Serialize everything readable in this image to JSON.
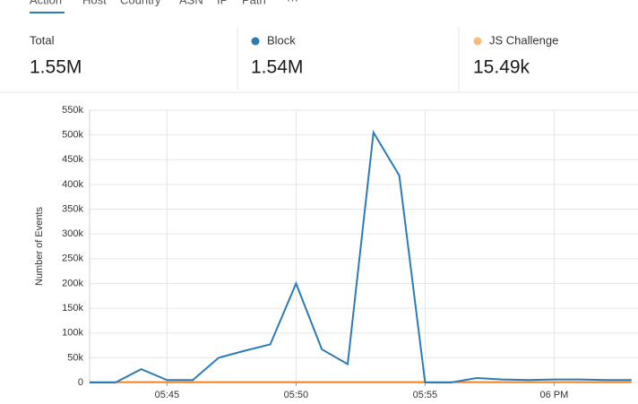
{
  "tabs": [
    "Action",
    "Host",
    "Country",
    "ASN",
    "IP",
    "Path",
    "···"
  ],
  "stats": [
    {
      "label": "Total",
      "value": "1.55M"
    },
    {
      "label": "Block",
      "value": "1.54M",
      "color": "#2c7bb6"
    },
    {
      "label": "JS Challenge",
      "value": "15.49k",
      "color": "#fbb97a"
    }
  ],
  "chart_data": {
    "type": "line",
    "y_label": "Number of Events",
    "categories": [
      null,
      null,
      null,
      "05:45",
      null,
      null,
      null,
      null,
      "05:50",
      null,
      null,
      null,
      null,
      "05:55",
      null,
      null,
      null,
      null,
      "06 PM",
      null,
      null,
      null
    ],
    "series": [
      {
        "name": "Block",
        "color": "#2c7bb6",
        "values": [
          0,
          0,
          27000,
          5000,
          5000,
          50000,
          64000,
          77000,
          200000,
          67000,
          37000,
          505000,
          418000,
          0,
          0,
          9000,
          6000,
          5000,
          6000,
          6000,
          5000,
          5000
        ]
      },
      {
        "name": "JS Challenge",
        "color": "#f38020",
        "values": [
          700,
          700,
          700,
          700,
          700,
          700,
          700,
          700,
          700,
          700,
          700,
          700,
          700,
          700,
          700,
          700,
          700,
          700,
          700,
          700,
          700,
          700
        ]
      }
    ],
    "ylim": [
      0,
      550000
    ],
    "yticks": [
      0,
      {
        "value": 50000,
        "label": "50k"
      },
      {
        "value": 100000,
        "label": "100k"
      },
      {
        "value": 150000,
        "label": "150k"
      },
      {
        "value": 200000,
        "label": "200k"
      },
      {
        "value": 250000,
        "label": "250k"
      },
      {
        "value": 300000,
        "label": "300k"
      },
      {
        "value": 350000,
        "label": "350k"
      },
      {
        "value": 400000,
        "label": "400k"
      },
      {
        "value": 450000,
        "label": "450k"
      },
      {
        "value": 500000,
        "label": "500k"
      },
      {
        "value": 550000,
        "label": "550k"
      }
    ],
    "grid": true
  }
}
